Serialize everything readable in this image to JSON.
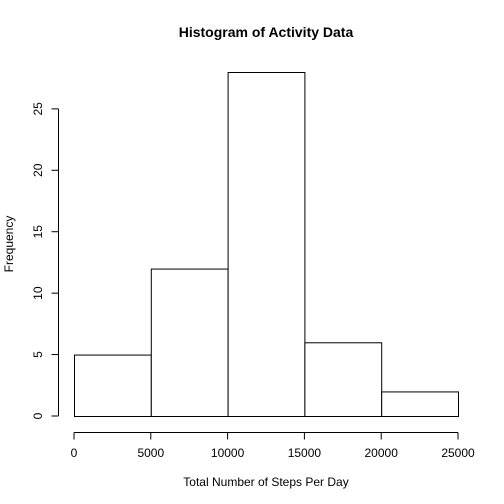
{
  "chart_data": {
    "type": "bar",
    "title": "Histogram of Activity Data",
    "xlabel": "Total Number of Steps Per Day",
    "ylabel": "Frequency",
    "bins": [
      {
        "from": 0,
        "to": 5000,
        "count": 5
      },
      {
        "from": 5000,
        "to": 10000,
        "count": 12
      },
      {
        "from": 10000,
        "to": 15000,
        "count": 28
      },
      {
        "from": 15000,
        "to": 20000,
        "count": 6
      },
      {
        "from": 20000,
        "to": 25000,
        "count": 2
      }
    ],
    "xlim": [
      0,
      25000
    ],
    "ylim": [
      0,
      28
    ],
    "x_ticks": [
      0,
      5000,
      10000,
      15000,
      20000,
      25000
    ],
    "y_ticks": [
      0,
      5,
      10,
      15,
      20,
      25
    ],
    "grid": false,
    "legend": "none",
    "colors": {
      "bar_fill": "#ffffff",
      "bar_stroke": "#000000"
    }
  }
}
